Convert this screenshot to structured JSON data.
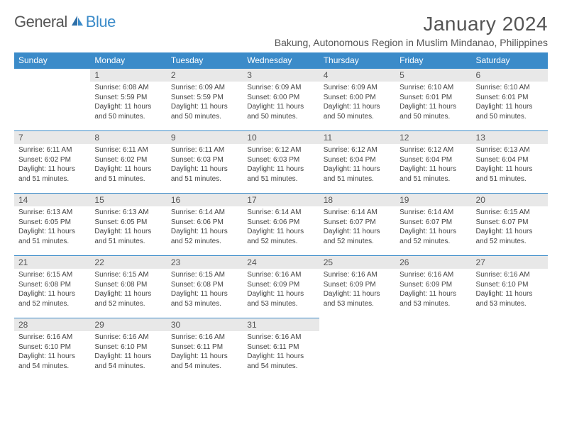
{
  "logo": {
    "text1": "General",
    "text2": "Blue",
    "accent": "#3b8bc9"
  },
  "title": "January 2024",
  "location": "Bakung, Autonomous Region in Muslim Mindanao, Philippines",
  "header_bg": "#3b8bc9",
  "daynum_bg": "#e8e8e8",
  "weekdays": [
    "Sunday",
    "Monday",
    "Tuesday",
    "Wednesday",
    "Thursday",
    "Friday",
    "Saturday"
  ],
  "weeks": [
    [
      null,
      {
        "n": "1",
        "sr": "6:08 AM",
        "ss": "5:59 PM",
        "dl": "11 hours and 50 minutes."
      },
      {
        "n": "2",
        "sr": "6:09 AM",
        "ss": "5:59 PM",
        "dl": "11 hours and 50 minutes."
      },
      {
        "n": "3",
        "sr": "6:09 AM",
        "ss": "6:00 PM",
        "dl": "11 hours and 50 minutes."
      },
      {
        "n": "4",
        "sr": "6:09 AM",
        "ss": "6:00 PM",
        "dl": "11 hours and 50 minutes."
      },
      {
        "n": "5",
        "sr": "6:10 AM",
        "ss": "6:01 PM",
        "dl": "11 hours and 50 minutes."
      },
      {
        "n": "6",
        "sr": "6:10 AM",
        "ss": "6:01 PM",
        "dl": "11 hours and 50 minutes."
      }
    ],
    [
      {
        "n": "7",
        "sr": "6:11 AM",
        "ss": "6:02 PM",
        "dl": "11 hours and 51 minutes."
      },
      {
        "n": "8",
        "sr": "6:11 AM",
        "ss": "6:02 PM",
        "dl": "11 hours and 51 minutes."
      },
      {
        "n": "9",
        "sr": "6:11 AM",
        "ss": "6:03 PM",
        "dl": "11 hours and 51 minutes."
      },
      {
        "n": "10",
        "sr": "6:12 AM",
        "ss": "6:03 PM",
        "dl": "11 hours and 51 minutes."
      },
      {
        "n": "11",
        "sr": "6:12 AM",
        "ss": "6:04 PM",
        "dl": "11 hours and 51 minutes."
      },
      {
        "n": "12",
        "sr": "6:12 AM",
        "ss": "6:04 PM",
        "dl": "11 hours and 51 minutes."
      },
      {
        "n": "13",
        "sr": "6:13 AM",
        "ss": "6:04 PM",
        "dl": "11 hours and 51 minutes."
      }
    ],
    [
      {
        "n": "14",
        "sr": "6:13 AM",
        "ss": "6:05 PM",
        "dl": "11 hours and 51 minutes."
      },
      {
        "n": "15",
        "sr": "6:13 AM",
        "ss": "6:05 PM",
        "dl": "11 hours and 51 minutes."
      },
      {
        "n": "16",
        "sr": "6:14 AM",
        "ss": "6:06 PM",
        "dl": "11 hours and 52 minutes."
      },
      {
        "n": "17",
        "sr": "6:14 AM",
        "ss": "6:06 PM",
        "dl": "11 hours and 52 minutes."
      },
      {
        "n": "18",
        "sr": "6:14 AM",
        "ss": "6:07 PM",
        "dl": "11 hours and 52 minutes."
      },
      {
        "n": "19",
        "sr": "6:14 AM",
        "ss": "6:07 PM",
        "dl": "11 hours and 52 minutes."
      },
      {
        "n": "20",
        "sr": "6:15 AM",
        "ss": "6:07 PM",
        "dl": "11 hours and 52 minutes."
      }
    ],
    [
      {
        "n": "21",
        "sr": "6:15 AM",
        "ss": "6:08 PM",
        "dl": "11 hours and 52 minutes."
      },
      {
        "n": "22",
        "sr": "6:15 AM",
        "ss": "6:08 PM",
        "dl": "11 hours and 52 minutes."
      },
      {
        "n": "23",
        "sr": "6:15 AM",
        "ss": "6:08 PM",
        "dl": "11 hours and 53 minutes."
      },
      {
        "n": "24",
        "sr": "6:16 AM",
        "ss": "6:09 PM",
        "dl": "11 hours and 53 minutes."
      },
      {
        "n": "25",
        "sr": "6:16 AM",
        "ss": "6:09 PM",
        "dl": "11 hours and 53 minutes."
      },
      {
        "n": "26",
        "sr": "6:16 AM",
        "ss": "6:09 PM",
        "dl": "11 hours and 53 minutes."
      },
      {
        "n": "27",
        "sr": "6:16 AM",
        "ss": "6:10 PM",
        "dl": "11 hours and 53 minutes."
      }
    ],
    [
      {
        "n": "28",
        "sr": "6:16 AM",
        "ss": "6:10 PM",
        "dl": "11 hours and 54 minutes."
      },
      {
        "n": "29",
        "sr": "6:16 AM",
        "ss": "6:10 PM",
        "dl": "11 hours and 54 minutes."
      },
      {
        "n": "30",
        "sr": "6:16 AM",
        "ss": "6:11 PM",
        "dl": "11 hours and 54 minutes."
      },
      {
        "n": "31",
        "sr": "6:16 AM",
        "ss": "6:11 PM",
        "dl": "11 hours and 54 minutes."
      },
      null,
      null,
      null
    ]
  ]
}
